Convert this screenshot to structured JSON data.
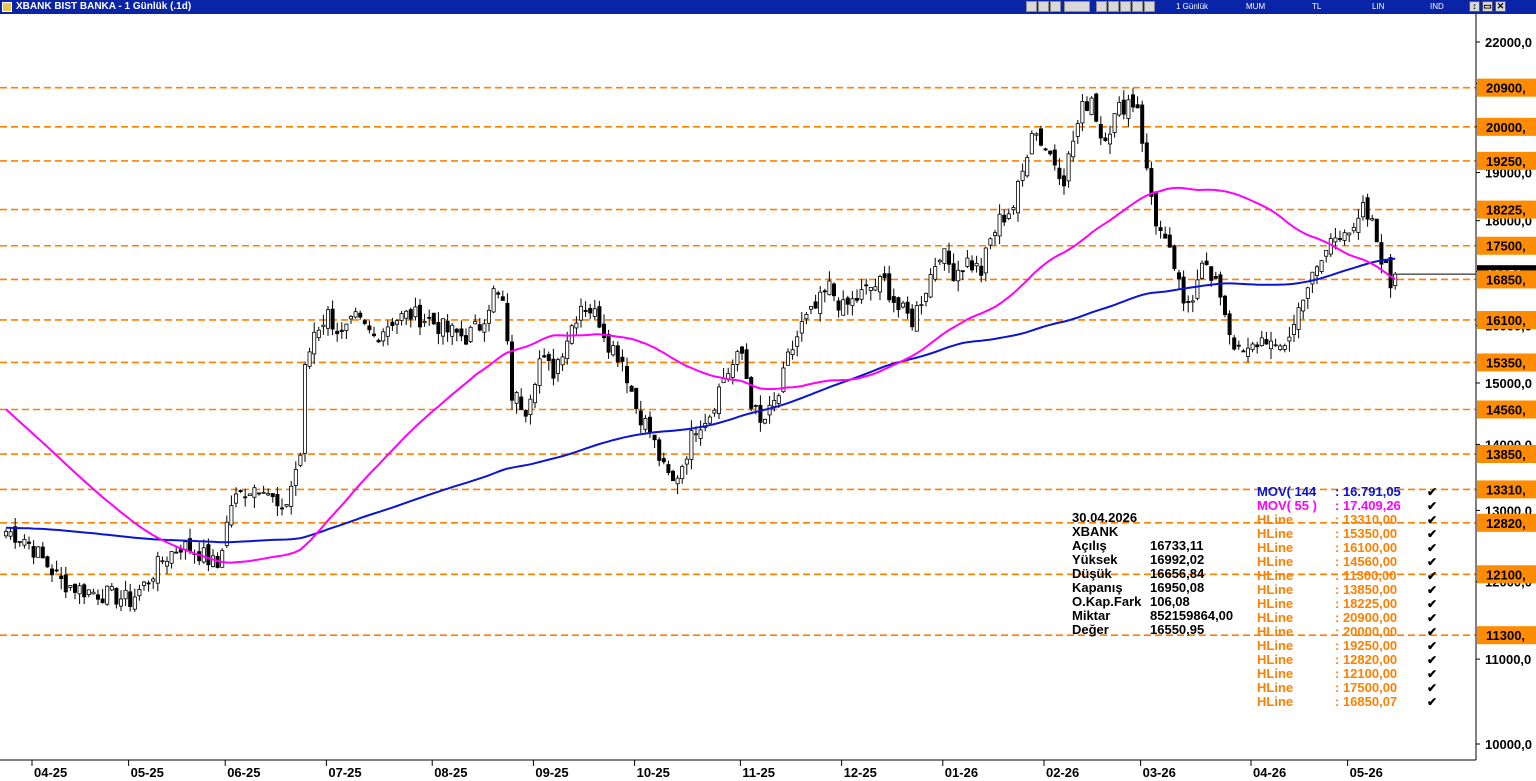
{
  "window": {
    "title": "XBANK BIST BANKA - 1 Günlük (.1d)",
    "toolbar_labels": [
      "1 Günlük",
      "MUM",
      "TL",
      "LIN",
      "IND"
    ],
    "window_buttons": [
      "↕",
      "▭",
      "✕"
    ]
  },
  "colors": {
    "background": "#ffffff",
    "hline": "#ff8000",
    "hline_label_bg": "#ff8c00",
    "mov144": "#0a14d2",
    "mov55": "#ff00ff",
    "candle": "#000000",
    "title_bar": "#0a24a8"
  },
  "info": {
    "date": "30.04.2026",
    "symbol": "XBANK",
    "rows": [
      {
        "label": "Açılış",
        "value": "16733,11"
      },
      {
        "label": "Yüksek",
        "value": "16992,02"
      },
      {
        "label": "Düşük",
        "value": "16656,84"
      },
      {
        "label": "Kapanış",
        "value": "16950,08"
      },
      {
        "label": "O.Kap.Fark",
        "value": "106,08"
      },
      {
        "label": "Miktar",
        "value": "852159864,00"
      },
      {
        "label": "Değer",
        "value": "16550,95"
      }
    ]
  },
  "legend": [
    {
      "name": "MOV( 144",
      "value": ": 16.791,05",
      "color": "#0a14d2"
    },
    {
      "name": "MOV( 55 )",
      "value": ": 17.409,26",
      "color": "#ff00ff"
    },
    {
      "name": "HLine",
      "value": ": 13310,00",
      "color": "#ff8000"
    },
    {
      "name": "HLine",
      "value": ": 15350,00",
      "color": "#ff8000"
    },
    {
      "name": "HLine",
      "value": ": 16100,00",
      "color": "#ff8000"
    },
    {
      "name": "HLine",
      "value": ": 14560,00",
      "color": "#ff8000"
    },
    {
      "name": "HLine",
      "value": ": 11300,00",
      "color": "#ff8000"
    },
    {
      "name": "HLine",
      "value": ": 13850,00",
      "color": "#ff8000"
    },
    {
      "name": "HLine",
      "value": ": 18225,00",
      "color": "#ff8000"
    },
    {
      "name": "HLine",
      "value": ": 20900,00",
      "color": "#ff8000"
    },
    {
      "name": "HLine",
      "value": ": 20000,00",
      "color": "#ff8000"
    },
    {
      "name": "HLine",
      "value": ": 19250,00",
      "color": "#ff8000"
    },
    {
      "name": "HLine",
      "value": ": 12820,00",
      "color": "#ff8000"
    },
    {
      "name": "HLine",
      "value": ": 12100,00",
      "color": "#ff8000"
    },
    {
      "name": "HLine",
      "value": ": 17500,00",
      "color": "#ff8000"
    },
    {
      "name": "HLine",
      "value": ": 16850,07",
      "color": "#ff8000"
    }
  ],
  "legend_check": "✔",
  "chart_data": {
    "type": "candlestick",
    "title": "XBANK BIST BANKA - 1 Günlük (.1d)",
    "y_axis": {
      "scale": "log",
      "ticks": [
        10000,
        11000,
        12000,
        13000,
        14000,
        15000,
        16000,
        17000,
        18000,
        19000,
        20000,
        21000,
        22000
      ],
      "tick_labels": [
        "10000,0",
        "11000,0",
        "12000,0",
        "13000,0",
        "14000,0",
        "15000,0",
        "16000,0",
        "17000,0",
        "18000,0",
        "19000,0",
        "20000,0",
        "21000,0",
        "22000,0"
      ],
      "ylim": [
        9850,
        22700
      ]
    },
    "x_axis": {
      "labels": [
        "04-25",
        "05-25",
        "06-25",
        "07-25",
        "08-25",
        "09-25",
        "10-25",
        "11-25",
        "12-25",
        "01-26",
        "02-26",
        "03-26",
        "04-26",
        "05-26"
      ],
      "label_bar_index": [
        0,
        21,
        42,
        64,
        87,
        109,
        131,
        154,
        176,
        198,
        220,
        241,
        265,
        286
      ]
    },
    "hlines": [
      {
        "value": 20900,
        "label": "20900,"
      },
      {
        "value": 20000,
        "label": "20000,"
      },
      {
        "value": 19250,
        "label": "19250,"
      },
      {
        "value": 18225,
        "label": "18225,"
      },
      {
        "value": 17500,
        "label": "17500,"
      },
      {
        "value": 16850,
        "label": "16850,"
      },
      {
        "value": 16100,
        "label": "16100,"
      },
      {
        "value": 15350,
        "label": "15350,"
      },
      {
        "value": 14560,
        "label": "14560,"
      },
      {
        "value": 13850,
        "label": "13850,"
      },
      {
        "value": 13310,
        "label": "13310,"
      },
      {
        "value": 12820,
        "label": "12820,"
      },
      {
        "value": 12100,
        "label": "12100,"
      },
      {
        "value": 11300,
        "label": "11300,"
      }
    ],
    "last_price": {
      "value": 16950,
      "label": "16950,"
    },
    "close_anchors": [
      [
        0,
        12700
      ],
      [
        4,
        12600
      ],
      [
        8,
        12300
      ],
      [
        12,
        12000
      ],
      [
        16,
        11900
      ],
      [
        20,
        11850
      ],
      [
        24,
        11800
      ],
      [
        27,
        11750
      ],
      [
        30,
        11950
      ],
      [
        34,
        12300
      ],
      [
        38,
        12500
      ],
      [
        42,
        12400
      ],
      [
        46,
        12200
      ],
      [
        49,
        13100
      ],
      [
        52,
        13300
      ],
      [
        56,
        13400
      ],
      [
        60,
        12900
      ],
      [
        64,
        13850
      ],
      [
        65,
        15200
      ],
      [
        67,
        15900
      ],
      [
        70,
        16200
      ],
      [
        73,
        15800
      ],
      [
        76,
        16100
      ],
      [
        80,
        15800
      ],
      [
        84,
        16100
      ],
      [
        88,
        16200
      ],
      [
        92,
        16100
      ],
      [
        96,
        15900
      ],
      [
        100,
        15800
      ],
      [
        103,
        16000
      ],
      [
        106,
        16600
      ],
      [
        108,
        16400
      ],
      [
        110,
        14800
      ],
      [
        113,
        14600
      ],
      [
        116,
        15400
      ],
      [
        119,
        15200
      ],
      [
        122,
        15800
      ],
      [
        125,
        16400
      ],
      [
        127,
        16300
      ],
      [
        129,
        16100
      ],
      [
        131,
        15700
      ],
      [
        134,
        15400
      ],
      [
        137,
        14600
      ],
      [
        140,
        14200
      ],
      [
        143,
        13600
      ],
      [
        145,
        13400
      ],
      [
        147,
        13700
      ],
      [
        150,
        14300
      ],
      [
        153,
        14500
      ],
      [
        156,
        15100
      ],
      [
        158,
        15300
      ],
      [
        160,
        15500
      ],
      [
        162,
        14700
      ],
      [
        164,
        14300
      ],
      [
        166,
        14500
      ],
      [
        168,
        14800
      ],
      [
        170,
        15400
      ],
      [
        173,
        16000
      ],
      [
        176,
        16300
      ],
      [
        179,
        16700
      ],
      [
        182,
        16300
      ],
      [
        185,
        16500
      ],
      [
        188,
        16700
      ],
      [
        191,
        16800
      ],
      [
        194,
        16300
      ],
      [
        197,
        16100
      ],
      [
        200,
        16700
      ],
      [
        203,
        17400
      ],
      [
        206,
        17000
      ],
      [
        209,
        17200
      ],
      [
        212,
        17000
      ],
      [
        214,
        17600
      ],
      [
        216,
        18000
      ],
      [
        219,
        18300
      ],
      [
        221,
        19000
      ],
      [
        223,
        20000
      ],
      [
        225,
        19700
      ],
      [
        227,
        19400
      ],
      [
        230,
        18900
      ],
      [
        232,
        19700
      ],
      [
        234,
        20400
      ],
      [
        236,
        20700
      ],
      [
        238,
        19800
      ],
      [
        240,
        20000
      ],
      [
        242,
        20400
      ],
      [
        244,
        20600
      ],
      [
        246,
        20500
      ],
      [
        248,
        19000
      ],
      [
        250,
        18000
      ],
      [
        252,
        17500
      ],
      [
        254,
        17100
      ],
      [
        256,
        16300
      ],
      [
        258,
        16600
      ],
      [
        260,
        17300
      ],
      [
        262,
        16800
      ],
      [
        264,
        16600
      ],
      [
        266,
        15900
      ],
      [
        268,
        15500
      ],
      [
        270,
        15500
      ],
      [
        272,
        15700
      ],
      [
        274,
        15800
      ],
      [
        276,
        15500
      ],
      [
        278,
        15700
      ],
      [
        280,
        16000
      ],
      [
        282,
        16600
      ],
      [
        285,
        17000
      ],
      [
        288,
        17600
      ],
      [
        291,
        17900
      ],
      [
        293,
        17700
      ],
      [
        295,
        18200
      ],
      [
        297,
        17900
      ],
      [
        299,
        17300
      ],
      [
        301,
        16750
      ],
      [
        302,
        16950
      ]
    ]
  }
}
